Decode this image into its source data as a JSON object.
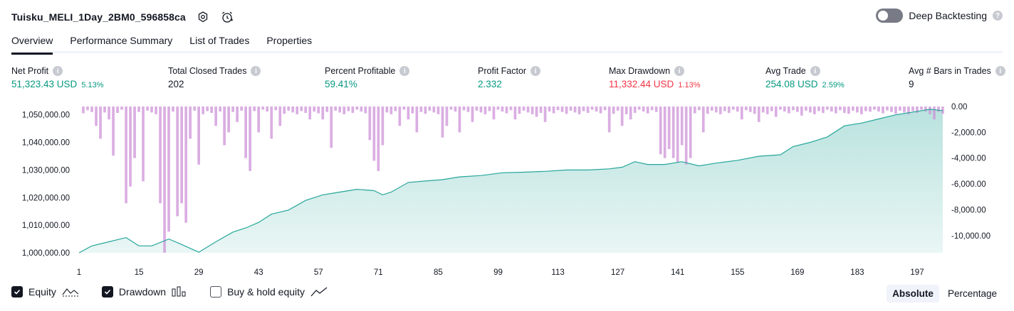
{
  "header": {
    "title": "Tuisku_MELI_1Day_2BM0_596858ca",
    "settings_icon": "settings-icon",
    "alert_icon": "add-alert-icon",
    "deep_backtesting_label": "Deep Backtesting",
    "help_glyph": "?"
  },
  "tabs": [
    {
      "label": "Overview",
      "active": true
    },
    {
      "label": "Performance Summary",
      "active": false
    },
    {
      "label": "List of Trades",
      "active": false
    },
    {
      "label": "Properties",
      "active": false
    }
  ],
  "metrics": [
    {
      "label": "Net Profit",
      "value": "51,323.43 USD",
      "pct": "5.13%",
      "color": "#089981"
    },
    {
      "label": "Total Closed Trades",
      "value": "202",
      "pct": "",
      "color": "#131722"
    },
    {
      "label": "Percent Profitable",
      "value": "59.41%",
      "pct": "",
      "color": "#089981"
    },
    {
      "label": "Profit Factor",
      "value": "2.332",
      "pct": "",
      "color": "#089981"
    },
    {
      "label": "Max Drawdown",
      "value": "11,332.44 USD",
      "pct": "1.13%",
      "color": "#f23645"
    },
    {
      "label": "Avg Trade",
      "value": "254.08 USD",
      "pct": "2.59%",
      "color": "#089981"
    },
    {
      "label": "Avg # Bars in Trades",
      "value": "9",
      "pct": "",
      "color": "#131722"
    }
  ],
  "legend": {
    "equity": "Equity",
    "drawdown": "Drawdown",
    "buy_hold": "Buy & hold equity"
  },
  "mode": {
    "absolute": "Absolute",
    "percentage": "Percentage"
  },
  "chart_data": {
    "type": "area",
    "left_axis": {
      "ticks": [
        "1,050,000.00",
        "1,040,000.00",
        "1,030,000.00",
        "1,020,000.00",
        "1,010,000.00",
        "1,000,000.00"
      ],
      "ylim": [
        1000000,
        1053000
      ]
    },
    "right_axis": {
      "ticks": [
        "0.00",
        "-2,000.00",
        "-4,000.00",
        "-6,000.00",
        "-8,000.00",
        "-10,000.00"
      ],
      "ylim": [
        -11332,
        0
      ]
    },
    "x_ticks": [
      "1",
      "15",
      "29",
      "43",
      "57",
      "71",
      "85",
      "99",
      "113",
      "127",
      "141",
      "155",
      "169",
      "183",
      "197"
    ],
    "xlim": [
      1,
      203
    ],
    "series": [
      {
        "name": "Equity",
        "color": "#26a69a",
        "x": [
          1,
          4,
          8,
          12,
          15,
          18,
          22,
          25,
          29,
          33,
          37,
          40,
          43,
          46,
          50,
          54,
          58,
          62,
          66,
          70,
          72,
          74,
          78,
          82,
          86,
          90,
          95,
          100,
          105,
          110,
          115,
          120,
          125,
          128,
          131,
          134,
          138,
          142,
          146,
          150,
          155,
          160,
          165,
          168,
          172,
          176,
          180,
          184,
          188,
          192,
          196,
          200,
          203
        ],
        "y": [
          1000000,
          1002500,
          1004000,
          1005500,
          1002500,
          1002500,
          1005000,
          1003000,
          1000200,
          1004000,
          1007500,
          1009000,
          1011000,
          1014000,
          1015500,
          1019000,
          1021000,
          1022000,
          1023000,
          1022500,
          1021000,
          1022000,
          1025500,
          1026000,
          1026500,
          1027500,
          1028000,
          1029000,
          1029200,
          1029500,
          1030000,
          1030000,
          1030400,
          1031000,
          1033000,
          1032000,
          1032000,
          1033000,
          1031500,
          1032500,
          1033500,
          1035000,
          1035500,
          1038500,
          1040000,
          1042000,
          1046000,
          1047000,
          1048500,
          1050000,
          1051000,
          1052000,
          1051500
        ]
      },
      {
        "name": "Drawdown",
        "color": "#ce93d8",
        "x": [
          5,
          6,
          8,
          9,
          12,
          13,
          14,
          16,
          20,
          21,
          22,
          24,
          25,
          26,
          27,
          29,
          33,
          35,
          36,
          38,
          40,
          41,
          43,
          46,
          48,
          55,
          58,
          60,
          69,
          70,
          71,
          72,
          76,
          78,
          80,
          86,
          87,
          90,
          93,
          98,
          103,
          108,
          110,
          118,
          125,
          128,
          130,
          137,
          138,
          139,
          140,
          141,
          142,
          143,
          144,
          147,
          156,
          160,
          164,
          170,
          175,
          180,
          186,
          190,
          200,
          201
        ],
        "y": [
          -1500,
          -2500,
          -1000,
          -3800,
          -7500,
          -6200,
          -4000,
          -5800,
          -7500,
          -11332,
          -9700,
          -8500,
          -7500,
          -9000,
          -2500,
          -4500,
          -1500,
          -3000,
          -2000,
          -1200,
          -4000,
          -5000,
          -2000,
          -2500,
          -1500,
          -1000,
          -1000,
          -3200,
          -2600,
          -4200,
          -5000,
          -3000,
          -1500,
          -1000,
          -2000,
          -2400,
          -1500,
          -2000,
          -1200,
          -1000,
          -1000,
          -800,
          -1200,
          -600,
          -2000,
          -1500,
          -1000,
          -3700,
          -4000,
          -3300,
          -4000,
          -4300,
          -3000,
          -4500,
          -4000,
          -2000,
          -1000,
          -1200,
          -800,
          -700,
          -500,
          -500,
          -400,
          -300,
          -600,
          -1000
        ]
      }
    ]
  }
}
